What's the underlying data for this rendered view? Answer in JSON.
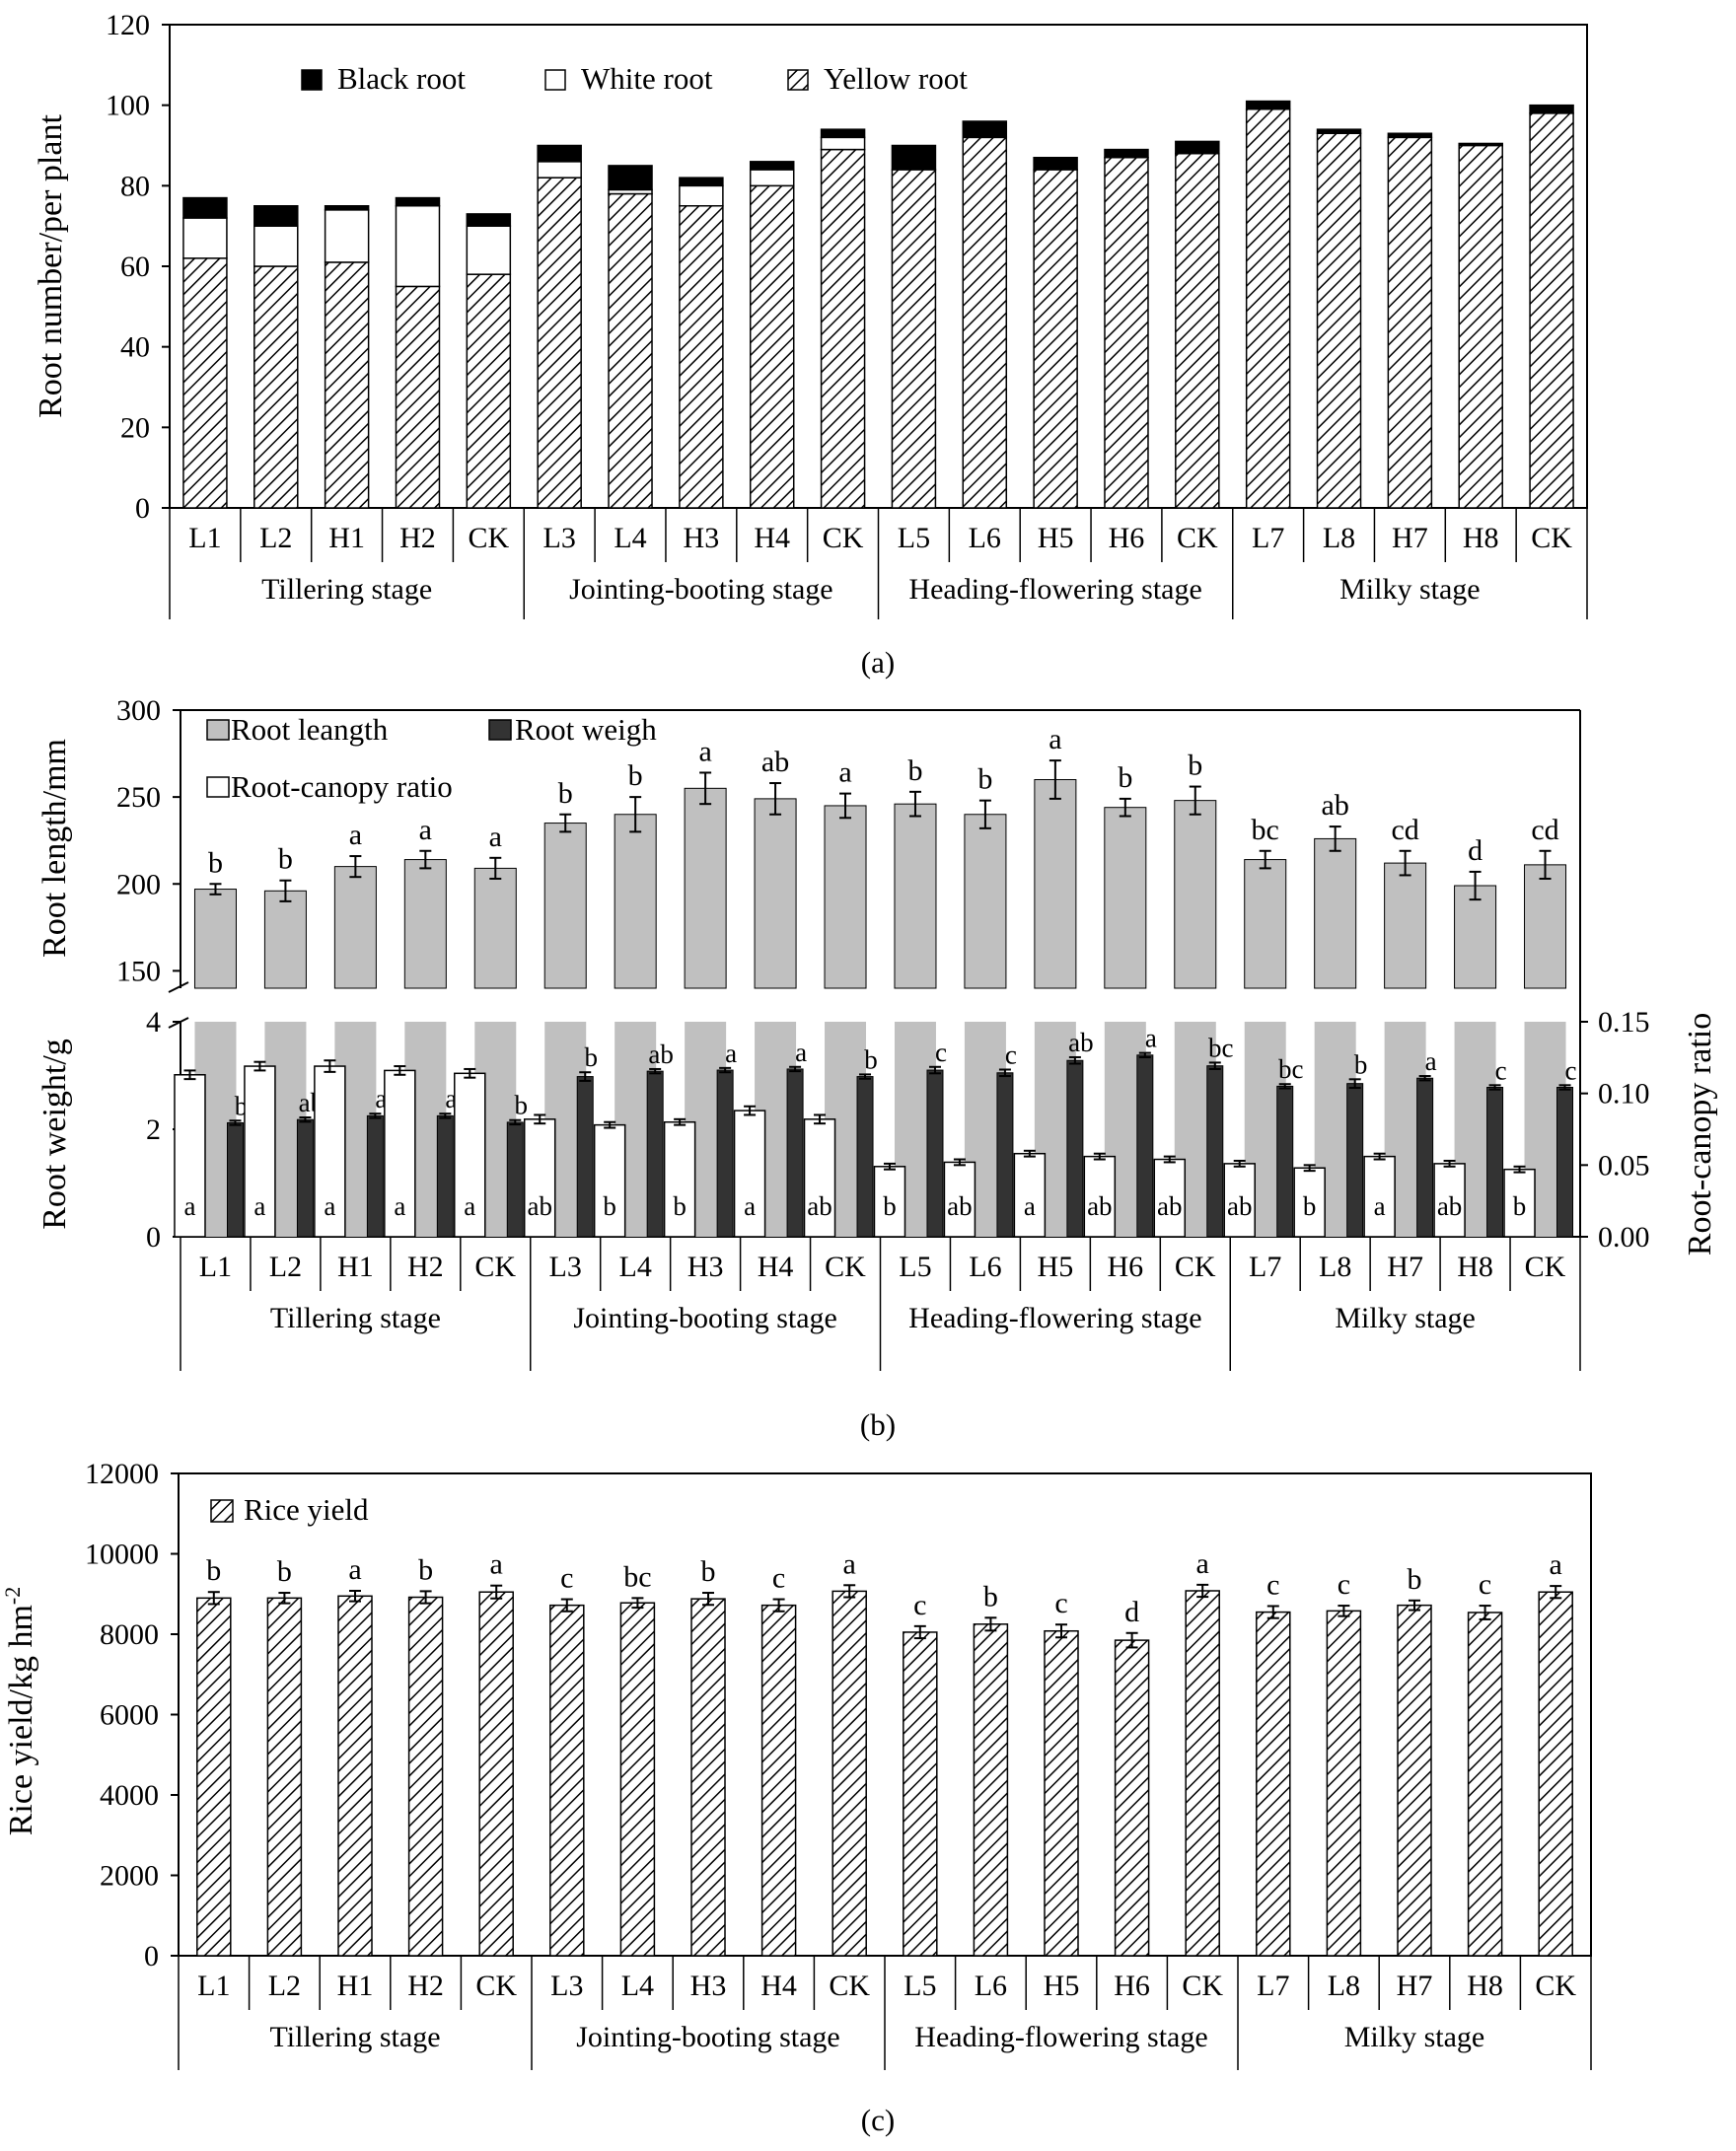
{
  "colors": {
    "black": "#000000",
    "gray": "#c0c0c0",
    "dark": "#333333",
    "white": "#ffffff"
  },
  "chart_data": [
    {
      "id": "a",
      "type": "bar",
      "stacked": true,
      "panel_label": "(a)",
      "ylabel": "Root number/per plant",
      "ylim": [
        0,
        120
      ],
      "yticks": [
        "0",
        "20",
        "40",
        "60",
        "80",
        "100",
        "120"
      ],
      "categories": [
        "L1",
        "L2",
        "H1",
        "H2",
        "CK",
        "L3",
        "L4",
        "H3",
        "H4",
        "CK",
        "L5",
        "L6",
        "H5",
        "H6",
        "CK",
        "L7",
        "L8",
        "H7",
        "H8",
        "CK"
      ],
      "groups": [
        "Tillering stage",
        "Jointing-booting stage",
        "Heading-flowering stage",
        "Milky stage"
      ],
      "legend": [
        "Black root",
        "White root",
        "Yellow root"
      ],
      "series": [
        {
          "name": "Yellow root",
          "values": [
            62,
            60,
            61,
            55,
            58,
            82,
            78,
            75,
            80,
            89,
            84,
            92,
            84,
            87,
            88,
            99,
            93,
            92,
            90,
            98
          ]
        },
        {
          "name": "White root",
          "values": [
            10,
            10,
            13,
            20,
            12,
            4,
            1,
            5,
            4,
            3,
            0,
            0,
            0,
            0,
            0,
            0,
            0,
            0,
            0,
            0
          ]
        },
        {
          "name": "Black root",
          "values": [
            5,
            5,
            1,
            2,
            3,
            4,
            6,
            2,
            2,
            2,
            6,
            4,
            3,
            2,
            3,
            2,
            1,
            1,
            0.5,
            2
          ]
        }
      ]
    },
    {
      "id": "b",
      "type": "bar",
      "panel_label": "(b)",
      "ylabel_top": "Root length/mm",
      "ylabel_bottom": "Root weight/g",
      "ylabel_right": "Root-canopy ratio",
      "ylim_top": [
        140,
        300
      ],
      "yticks_top": [
        "150",
        "200",
        "250",
        "300"
      ],
      "ylim_bottom": [
        0,
        4
      ],
      "yticks_bottom": [
        "0",
        "2",
        "4"
      ],
      "ylim_right": [
        0,
        0.15
      ],
      "yticks_right": [
        "0.00",
        "0.05",
        "0.10",
        "0.15"
      ],
      "categories": [
        "L1",
        "L2",
        "H1",
        "H2",
        "CK",
        "L3",
        "L4",
        "H3",
        "H4",
        "CK",
        "L5",
        "L6",
        "H5",
        "H6",
        "CK",
        "L7",
        "L8",
        "H7",
        "H8",
        "CK"
      ],
      "groups": [
        "Tillering stage",
        "Jointing-booting stage",
        "Heading-flowering stage",
        "Milky stage"
      ],
      "legend": [
        "Root leangth",
        "Root weigh",
        "Root-canopy ratio"
      ],
      "series": [
        {
          "name": "Root leangth",
          "values": [
            197,
            196,
            210,
            214,
            209,
            235,
            240,
            255,
            249,
            245,
            246,
            240,
            260,
            244,
            248,
            214,
            226,
            212,
            199,
            211
          ],
          "errors": [
            3,
            6,
            6,
            5,
            6,
            5,
            10,
            9,
            9,
            7,
            7,
            8,
            11,
            5,
            8,
            5,
            7,
            7,
            8,
            8
          ],
          "letters": [
            "b",
            "b",
            "a",
            "a",
            "a",
            "b",
            "b",
            "a",
            "ab",
            "a",
            "b",
            "b",
            "a",
            "b",
            "b",
            "bc",
            "ab",
            "cd",
            "d",
            "cd"
          ]
        },
        {
          "name": "Root weigh",
          "values": [
            2.12,
            2.18,
            2.25,
            2.25,
            2.13,
            2.98,
            3.08,
            3.1,
            3.12,
            2.98,
            3.1,
            3.05,
            3.28,
            3.38,
            3.18,
            2.8,
            2.85,
            2.95,
            2.78,
            2.78
          ],
          "errors": [
            0.04,
            0.04,
            0.04,
            0.04,
            0.04,
            0.08,
            0.04,
            0.04,
            0.04,
            0.04,
            0.06,
            0.06,
            0.06,
            0.04,
            0.06,
            0.04,
            0.08,
            0.04,
            0.04,
            0.04
          ],
          "letters": [
            "b",
            "ab",
            "a",
            "a",
            "b",
            "b",
            "ab",
            "a",
            "a",
            "b",
            "c",
            "c",
            "ab",
            "a",
            "bc",
            "bc",
            "b",
            "a",
            "c",
            "c"
          ]
        },
        {
          "name": "Root-canopy ratio",
          "values": [
            0.113,
            0.119,
            0.119,
            0.116,
            0.114,
            0.082,
            0.078,
            0.08,
            0.088,
            0.082,
            0.049,
            0.052,
            0.058,
            0.056,
            0.054,
            0.051,
            0.048,
            0.056,
            0.051,
            0.047
          ],
          "errors": [
            0.003,
            0.003,
            0.004,
            0.003,
            0.003,
            0.003,
            0.002,
            0.002,
            0.003,
            0.003,
            0.002,
            0.002,
            0.002,
            0.002,
            0.002,
            0.002,
            0.002,
            0.002,
            0.002,
            0.002
          ],
          "letters": [
            "a",
            "a",
            "a",
            "a",
            "a",
            "ab",
            "b",
            "b",
            "a",
            "ab",
            "b",
            "ab",
            "a",
            "ab",
            "ab",
            "ab",
            "b",
            "a",
            "ab",
            "b"
          ]
        }
      ]
    },
    {
      "id": "c",
      "type": "bar",
      "panel_label": "(c)",
      "ylabel": "Rice yield/kg hm",
      "ylabel_sup": "-2",
      "ylim": [
        0,
        12000
      ],
      "yticks": [
        "0",
        "2000",
        "4000",
        "6000",
        "8000",
        "10000",
        "12000"
      ],
      "categories": [
        "L1",
        "L2",
        "H1",
        "H2",
        "CK",
        "L3",
        "L4",
        "H3",
        "H4",
        "CK",
        "L5",
        "L6",
        "H5",
        "H6",
        "CK",
        "L7",
        "L8",
        "H7",
        "H8",
        "CK"
      ],
      "groups": [
        "Tillering stage",
        "Jointing-booting stage",
        "Heading-flowering stage",
        "Milky stage"
      ],
      "legend": [
        "Rice yield"
      ],
      "series": [
        {
          "name": "Rice yield",
          "values": [
            8900,
            8900,
            8950,
            8920,
            9050,
            8720,
            8780,
            8880,
            8720,
            9070,
            8050,
            8250,
            8080,
            7850,
            9080,
            8550,
            8580,
            8720,
            8540,
            9050
          ],
          "errors": [
            150,
            130,
            130,
            150,
            160,
            150,
            120,
            150,
            150,
            150,
            150,
            160,
            160,
            180,
            150,
            150,
            130,
            120,
            170,
            150
          ],
          "letters": [
            "b",
            "b",
            "a",
            "b",
            "a",
            "c",
            "bc",
            "b",
            "c",
            "a",
            "c",
            "b",
            "c",
            "d",
            "a",
            "c",
            "c",
            "b",
            "c",
            "a"
          ]
        }
      ]
    }
  ]
}
